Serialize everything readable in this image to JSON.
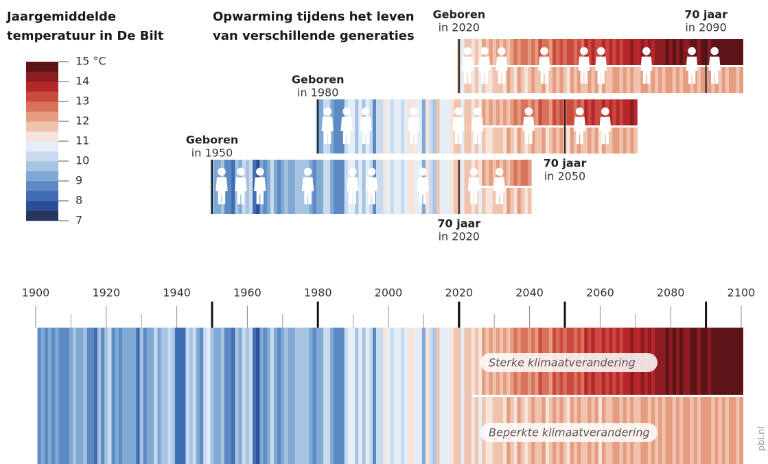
{
  "chart_data": {
    "type": "stripes",
    "title": [
      "Jaargemiddelde",
      "temperatuur in De Bilt"
    ],
    "subtitle": [
      "Opwarming tijdens het leven",
      "van verschillende generaties"
    ],
    "source": "pbl.nl",
    "legend": {
      "ticks": [
        {
          "value": 15,
          "label": "15 °C"
        },
        14,
        13,
        12,
        11,
        10,
        9,
        8,
        7
      ],
      "colors": [
        "#26365f",
        "#2b4e96",
        "#3f6cb2",
        "#5c8ac3",
        "#80a8d4",
        "#a6c3e2",
        "#c9daee",
        "#e5edf7",
        "#f6e3da",
        "#efc3ad",
        "#e59c81",
        "#d9725b",
        "#cb4a3f",
        "#b6272b",
        "#8d1c21",
        "#5c1418"
      ]
    },
    "xlim": [
      1900,
      2100
    ],
    "xticks": [
      1900,
      1920,
      1940,
      1960,
      1980,
      2000,
      2020,
      2040,
      2060,
      2080,
      2100
    ],
    "xticks_minor": [
      1910,
      1930,
      1950,
      1970,
      1990,
      2010,
      2030,
      2050,
      2070,
      2090
    ],
    "historic": {
      "x": [
        1901,
        1902,
        1903,
        1904,
        1905,
        1906,
        1907,
        1908,
        1909,
        1910,
        1911,
        1912,
        1913,
        1914,
        1915,
        1916,
        1917,
        1918,
        1919,
        1920,
        1921,
        1922,
        1923,
        1924,
        1925,
        1926,
        1927,
        1928,
        1929,
        1930,
        1931,
        1932,
        1933,
        1934,
        1935,
        1936,
        1937,
        1938,
        1939,
        1940,
        1941,
        1942,
        1943,
        1944,
        1945,
        1946,
        1947,
        1948,
        1949,
        1950,
        1951,
        1952,
        1953,
        1954,
        1955,
        1956,
        1957,
        1958,
        1959,
        1960,
        1961,
        1962,
        1963,
        1964,
        1965,
        1966,
        1967,
        1968,
        1969,
        1970,
        1971,
        1972,
        1973,
        1974,
        1975,
        1976,
        1977,
        1978,
        1979,
        1980,
        1981,
        1982,
        1983,
        1984,
        1985,
        1986,
        1987,
        1988,
        1989,
        1990,
        1991,
        1992,
        1993,
        1994,
        1995,
        1996,
        1997,
        1998,
        1999,
        2000,
        2001,
        2002,
        2003,
        2004,
        2005,
        2006,
        2007,
        2008,
        2009,
        2010,
        2011,
        2012,
        2013,
        2014,
        2015,
        2016,
        2017,
        2018,
        2019,
        2020,
        2021,
        2022,
        2023
      ],
      "values": [
        8.6,
        9.0,
        8.8,
        9.1,
        8.7,
        9.3,
        8.9,
        8.6,
        8.5,
        9.2,
        9.8,
        9.1,
        9.4,
        9.9,
        8.9,
        8.8,
        8.4,
        9.5,
        8.5,
        9.6,
        10.0,
        8.6,
        9.2,
        8.9,
        9.1,
        9.4,
        9.3,
        9.2,
        8.3,
        9.7,
        8.8,
        9.4,
        9.0,
        10.1,
        9.2,
        9.5,
        9.8,
        10.0,
        9.6,
        8.2,
        8.3,
        8.1,
        10.0,
        9.5,
        10.2,
        9.1,
        8.9,
        10.1,
        10.5,
        9.8,
        9.2,
        9.0,
        9.5,
        8.9,
        8.8,
        8.2,
        9.8,
        9.2,
        10.3,
        9.6,
        10.1,
        8.4,
        7.8,
        9.1,
        8.7,
        9.4,
        10.0,
        9.2,
        8.9,
        9.0,
        9.5,
        9.0,
        9.3,
        9.8,
        9.7,
        9.9,
        9.6,
        9.0,
        8.5,
        9.1,
        9.3,
        10.0,
        10.2,
        9.2,
        8.5,
        8.8,
        8.6,
        10.3,
        10.8,
        10.9,
        9.6,
        10.5,
        9.8,
        10.9,
        10.3,
        8.7,
        10.2,
        10.4,
        11.1,
        10.9,
        10.4,
        10.9,
        10.6,
        10.4,
        10.5,
        11.2,
        11.2,
        10.7,
        10.5,
        9.3,
        11.0,
        10.3,
        9.8,
        11.7,
        10.9,
        10.8,
        10.9,
        11.3,
        11.5,
        11.6,
        10.8,
        11.6,
        11.8
      ]
    },
    "series": [
      {
        "name": "Sterke klimaatverandering",
        "x": [
          2024,
          2025,
          2026,
          2027,
          2028,
          2029,
          2030,
          2031,
          2032,
          2033,
          2034,
          2035,
          2036,
          2037,
          2038,
          2039,
          2040,
          2041,
          2042,
          2043,
          2044,
          2045,
          2046,
          2047,
          2048,
          2049,
          2050,
          2051,
          2052,
          2053,
          2054,
          2055,
          2056,
          2057,
          2058,
          2059,
          2060,
          2061,
          2062,
          2063,
          2064,
          2065,
          2066,
          2067,
          2068,
          2069,
          2070,
          2071,
          2072,
          2073,
          2074,
          2075,
          2076,
          2077,
          2078,
          2079,
          2080,
          2081,
          2082,
          2083,
          2084,
          2085,
          2086,
          2087,
          2088,
          2089,
          2090,
          2091,
          2092,
          2093,
          2094,
          2095,
          2096,
          2097,
          2098,
          2099,
          2100
        ],
        "values": [
          11.4,
          11.8,
          11.2,
          12.0,
          11.6,
          12.1,
          11.5,
          12.2,
          11.9,
          12.4,
          11.7,
          12.3,
          12.6,
          12.0,
          12.5,
          12.8,
          12.2,
          12.7,
          12.4,
          13.0,
          12.6,
          12.9,
          12.3,
          13.1,
          12.8,
          13.2,
          12.7,
          13.0,
          13.3,
          12.9,
          13.4,
          12.8,
          13.5,
          13.1,
          13.6,
          13.2,
          13.0,
          13.5,
          13.3,
          13.8,
          13.4,
          13.7,
          13.2,
          13.9,
          13.6,
          14.0,
          13.5,
          13.8,
          14.1,
          13.7,
          14.2,
          13.9,
          14.4,
          14.0,
          14.3,
          14.6,
          14.1,
          14.5,
          14.2,
          14.7,
          14.4,
          14.1,
          14.8,
          14.5,
          14.3,
          14.9,
          14.6,
          14.4,
          14.8,
          14.6,
          14.9,
          14.5,
          14.7,
          15.0,
          14.8,
          14.6,
          14.9
        ]
      },
      {
        "name": "Beperkte klimaatverandering",
        "x": [
          2024,
          2025,
          2026,
          2027,
          2028,
          2029,
          2030,
          2031,
          2032,
          2033,
          2034,
          2035,
          2036,
          2037,
          2038,
          2039,
          2040,
          2041,
          2042,
          2043,
          2044,
          2045,
          2046,
          2047,
          2048,
          2049,
          2050,
          2051,
          2052,
          2053,
          2054,
          2055,
          2056,
          2057,
          2058,
          2059,
          2060,
          2061,
          2062,
          2063,
          2064,
          2065,
          2066,
          2067,
          2068,
          2069,
          2070,
          2071,
          2072,
          2073,
          2074,
          2075,
          2076,
          2077,
          2078,
          2079,
          2080,
          2081,
          2082,
          2083,
          2084,
          2085,
          2086,
          2087,
          2088,
          2089,
          2090,
          2091,
          2092,
          2093,
          2094,
          2095,
          2096,
          2097,
          2098,
          2099,
          2100
        ],
        "values": [
          11.2,
          11.6,
          10.9,
          11.8,
          11.4,
          11.0,
          11.7,
          11.5,
          11.9,
          11.1,
          12.0,
          11.6,
          11.3,
          12.2,
          11.7,
          11.4,
          11.9,
          12.1,
          11.5,
          11.8,
          12.3,
          11.2,
          11.9,
          12.0,
          11.6,
          12.4,
          11.8,
          11.3,
          12.1,
          11.7,
          12.2,
          11.9,
          11.5,
          12.3,
          11.8,
          12.0,
          11.4,
          12.2,
          11.9,
          11.6,
          12.4,
          12.0,
          11.7,
          12.1,
          11.5,
          12.3,
          11.9,
          11.8,
          12.2,
          12.0,
          11.6,
          12.4,
          11.9,
          12.1,
          11.7,
          12.3,
          12.0,
          11.9,
          12.2,
          11.6,
          12.0,
          12.4,
          11.8,
          12.1,
          11.5,
          12.3,
          12.0,
          12.2,
          11.7,
          12.1,
          11.9,
          12.3,
          11.6,
          12.0,
          12.4,
          11.8,
          12.1
        ]
      }
    ],
    "generations": [
      {
        "born_label": "Geboren",
        "born_year_label": "in 1950",
        "born": 1950,
        "end": 2040,
        "age_label": "70 jaar",
        "age_year_label": "in 2020",
        "age_year": 2020
      },
      {
        "born_label": "Geboren",
        "born_year_label": "in 1980",
        "born": 1980,
        "end": 2070,
        "age_label": "70 jaar",
        "age_year_label": "in 2050",
        "age_year": 2050
      },
      {
        "born_label": "Geboren",
        "born_year_label": "in 2020",
        "born": 2020,
        "end": 2100,
        "age_label": "70 jaar",
        "age_year_label": "in 2090",
        "age_year": 2090
      }
    ]
  }
}
